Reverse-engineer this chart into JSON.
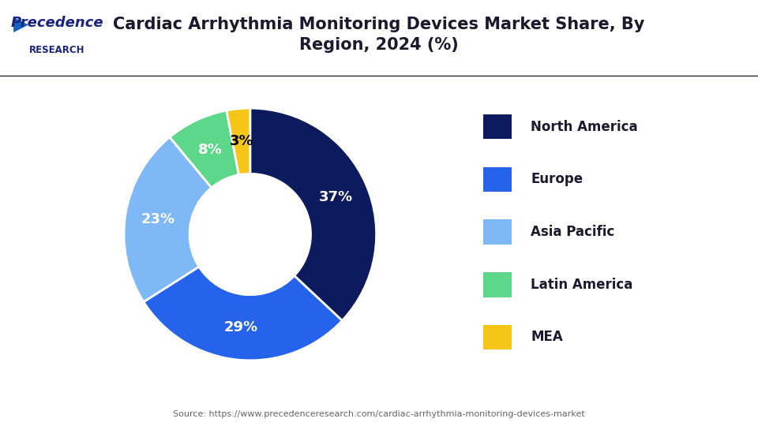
{
  "title": "Cardiac Arrhythmia Monitoring Devices Market Share, By\nRegion, 2024 (%)",
  "labels": [
    "North America",
    "Europe",
    "Asia Pacific",
    "Latin America",
    "MEA"
  ],
  "values": [
    37,
    29,
    23,
    8,
    3
  ],
  "colors": [
    "#0d1b5e",
    "#2563eb",
    "#7eb8f7",
    "#5dd88a",
    "#f5c518"
  ],
  "source": "Source: https://www.precedenceresearch.com/cardiac-arrhythmia-monitoring-devices-market",
  "bg_color": "#ffffff",
  "logo_text_top": "Precedence",
  "logo_text_bottom": "RESEARCH",
  "pct_labels": [
    "37%",
    "29%",
    "23%",
    "8%",
    "3%"
  ],
  "pct_colors": [
    "white",
    "white",
    "white",
    "white",
    "black"
  ]
}
